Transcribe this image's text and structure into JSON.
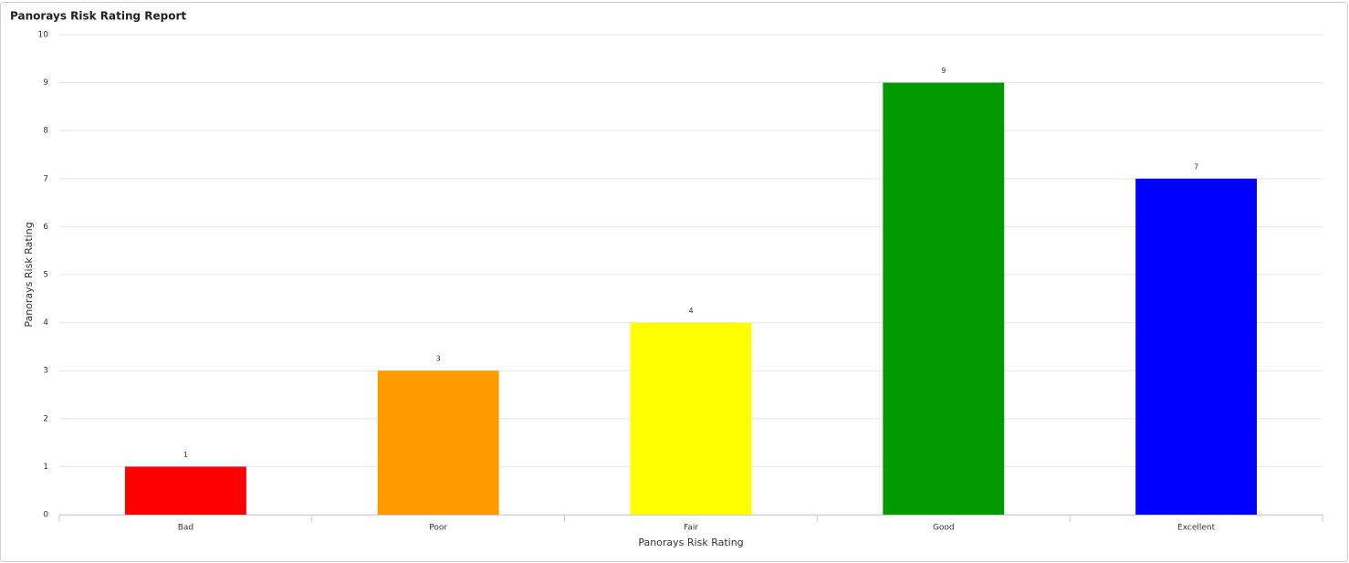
{
  "chart_data": {
    "type": "bar",
    "title": "Panorays Risk Rating Report",
    "x_label": "Panorays Risk Rating",
    "y_label": "Panorays Risk Rating",
    "categories": [
      "Bad",
      "Poor",
      "Fair",
      "Good",
      "Excellent"
    ],
    "values": [
      1,
      3,
      4,
      9,
      7
    ],
    "colors": [
      "#ff0000",
      "#ff9900",
      "#ffff00",
      "#009900",
      "#0000ff"
    ],
    "ylim": [
      0,
      10
    ],
    "yticks": [
      0,
      1,
      2,
      3,
      4,
      5,
      6,
      7,
      8,
      9,
      10
    ],
    "grid": true
  }
}
